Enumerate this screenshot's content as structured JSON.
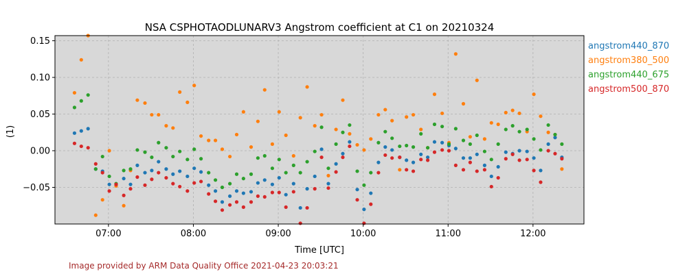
{
  "chart_data": {
    "type": "scatter",
    "title": "NSA CSPHOTAODLUNARV3 Angstrom coefficient at C1 on 20210324",
    "xlabel": "Time [UTC]",
    "ylabel": "(1)",
    "xlim": [
      6.37,
      12.6
    ],
    "ylim": [
      -0.1,
      0.157
    ],
    "xticks": [
      7,
      8,
      9,
      10,
      11,
      12
    ],
    "xtick_labels": [
      "07:00",
      "08:00",
      "09:00",
      "10:00",
      "11:00",
      "12:00"
    ],
    "yticks": [
      -0.05,
      0.0,
      0.05,
      0.1,
      0.15
    ],
    "ytick_labels": [
      "−0.05",
      "0.00",
      "0.05",
      "0.10",
      "0.15"
    ],
    "grid": true,
    "legend_position": "outside-right",
    "background": "#d8d8d8",
    "x": [
      6.6,
      6.68,
      6.76,
      6.85,
      6.93,
      7.01,
      7.09,
      7.18,
      7.26,
      7.34,
      7.43,
      7.51,
      7.59,
      7.68,
      7.76,
      7.84,
      7.93,
      8.01,
      8.09,
      8.18,
      8.26,
      8.34,
      8.43,
      8.51,
      8.59,
      8.68,
      8.76,
      8.84,
      8.93,
      9.01,
      9.09,
      9.18,
      9.26,
      9.34,
      9.43,
      9.51,
      9.59,
      9.68,
      9.76,
      9.84,
      9.93,
      10.01,
      10.09,
      10.18,
      10.26,
      10.34,
      10.43,
      10.51,
      10.59,
      10.68,
      10.76,
      10.84,
      10.93,
      11.01,
      11.09,
      11.18,
      11.26,
      11.34,
      11.43,
      11.51,
      11.59,
      11.68,
      11.76,
      11.84,
      11.93,
      12.01,
      12.09,
      12.18,
      12.26,
      12.34
    ],
    "series": [
      {
        "name": "angstrom440_870",
        "color": "#1f77b4",
        "values": [
          0.024,
          0.027,
          0.03,
          -0.025,
          -0.028,
          -0.046,
          -0.047,
          -0.038,
          -0.046,
          -0.02,
          -0.03,
          -0.027,
          -0.015,
          -0.025,
          -0.032,
          -0.028,
          -0.035,
          -0.024,
          -0.029,
          -0.047,
          -0.055,
          -0.07,
          -0.062,
          -0.055,
          -0.058,
          -0.056,
          -0.044,
          -0.04,
          -0.046,
          -0.037,
          -0.06,
          -0.045,
          -0.078,
          -0.052,
          -0.035,
          0.002,
          -0.045,
          -0.018,
          -0.004,
          0.012,
          -0.053,
          -0.08,
          -0.058,
          -0.016,
          0.005,
          0.001,
          -0.009,
          -0.013,
          -0.016,
          -0.005,
          -0.009,
          0.012,
          0.011,
          0.007,
          0.003,
          -0.01,
          -0.01,
          -0.005,
          -0.02,
          -0.035,
          -0.022,
          -0.002,
          -0.004,
          0.0,
          -0.001,
          -0.01,
          -0.027,
          0.009,
          0.018,
          -0.009
        ]
      },
      {
        "name": "angstrom380_500",
        "color": "#ff7f0e",
        "values": [
          0.079,
          0.124,
          0.157,
          -0.088,
          -0.067,
          0.0,
          -0.048,
          -0.075,
          -0.027,
          0.069,
          0.065,
          0.049,
          0.049,
          0.034,
          0.031,
          0.08,
          0.066,
          0.089,
          0.02,
          0.014,
          0.014,
          0.002,
          -0.008,
          0.022,
          0.053,
          0.005,
          0.04,
          0.083,
          0.009,
          0.053,
          0.021,
          -0.007,
          0.045,
          0.087,
          0.034,
          0.049,
          -0.034,
          0.029,
          0.069,
          0.023,
          0.008,
          0.001,
          0.016,
          0.049,
          0.056,
          0.041,
          -0.026,
          0.046,
          0.049,
          0.029,
          0.004,
          0.077,
          0.051,
          0.011,
          0.132,
          0.064,
          0.019,
          0.096,
          0.016,
          0.038,
          0.036,
          0.052,
          0.055,
          0.051,
          0.026,
          0.077,
          0.047,
          0.025,
          0.022,
          -0.025
        ]
      },
      {
        "name": "angstrom440_675",
        "color": "#2ca02c",
        "values": [
          0.059,
          0.068,
          0.076,
          -0.025,
          -0.008,
          -0.035,
          -0.045,
          -0.027,
          -0.025,
          0.001,
          -0.002,
          -0.009,
          0.011,
          0.004,
          -0.008,
          -0.001,
          -0.012,
          0.002,
          -0.011,
          -0.03,
          -0.04,
          -0.05,
          -0.045,
          -0.032,
          -0.038,
          -0.032,
          -0.01,
          -0.007,
          -0.024,
          -0.012,
          -0.03,
          -0.02,
          -0.03,
          -0.015,
          -0.001,
          0.032,
          -0.024,
          0.009,
          0.025,
          0.035,
          -0.028,
          -0.047,
          -0.03,
          0.011,
          0.026,
          0.017,
          0.006,
          0.007,
          0.005,
          0.023,
          0.004,
          0.036,
          0.033,
          0.009,
          0.03,
          0.014,
          0.009,
          0.021,
          -0.001,
          -0.012,
          0.009,
          0.029,
          0.034,
          0.026,
          0.029,
          0.016,
          0.001,
          0.035,
          0.022,
          0.009
        ]
      },
      {
        "name": "angstrom500_870",
        "color": "#d62728",
        "values": [
          0.01,
          0.006,
          0.004,
          -0.018,
          -0.03,
          -0.055,
          -0.046,
          -0.061,
          -0.052,
          -0.036,
          -0.047,
          -0.039,
          -0.03,
          -0.037,
          -0.045,
          -0.049,
          -0.055,
          -0.044,
          -0.042,
          -0.059,
          -0.069,
          -0.081,
          -0.074,
          -0.07,
          -0.077,
          -0.07,
          -0.062,
          -0.063,
          -0.057,
          -0.057,
          -0.077,
          -0.056,
          -0.099,
          -0.078,
          -0.052,
          -0.009,
          -0.051,
          -0.029,
          -0.009,
          0.006,
          -0.067,
          -0.099,
          -0.073,
          -0.03,
          -0.006,
          -0.01,
          -0.009,
          -0.026,
          -0.028,
          -0.012,
          -0.013,
          -0.002,
          0.001,
          0.0,
          -0.02,
          -0.026,
          -0.016,
          -0.028,
          -0.026,
          -0.049,
          -0.037,
          -0.011,
          -0.005,
          -0.013,
          -0.012,
          -0.027,
          -0.043,
          0.0,
          -0.004,
          -0.011
        ]
      }
    ]
  },
  "credit": "Image provided by ARM Data Quality Office 2021-04-23 20:03:21"
}
